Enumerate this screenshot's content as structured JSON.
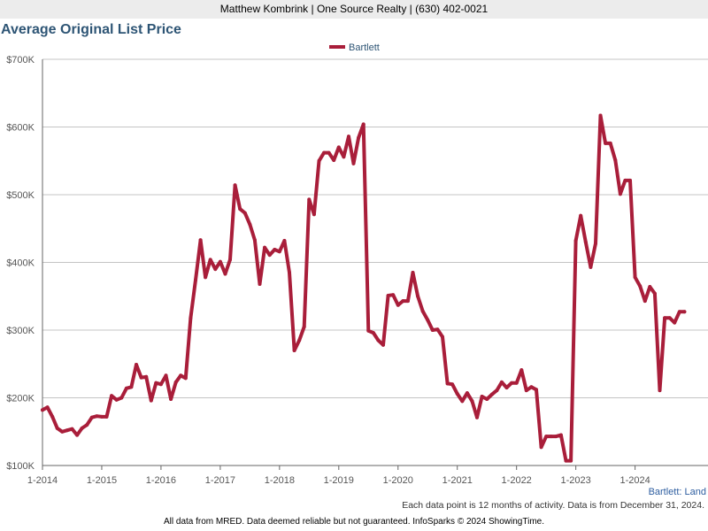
{
  "header": {
    "contact": "Matthew Kombrink | One Source Realty | (630) 402-0021"
  },
  "colors": {
    "series": "#a91e3a",
    "title": "#2e5575",
    "grid": "#c4c4c4",
    "axis": "#666666",
    "header_bg": "#ececec",
    "label": "#2e5ea0"
  },
  "chart_data": {
    "type": "line",
    "title": "Average Original List Price",
    "legend": [
      "Bartlett"
    ],
    "legend_position": "top-center",
    "corner_label": "Bartlett: Land",
    "ylim": [
      100000,
      700000
    ],
    "yticks": [
      100000,
      200000,
      300000,
      400000,
      500000,
      600000,
      700000
    ],
    "ytick_labels": [
      "$100K",
      "$200K",
      "$300K",
      "$400K",
      "$500K",
      "$600K",
      "$700K"
    ],
    "x_start": "1-2014",
    "x_tick_labels": [
      "1-2014",
      "1-2015",
      "1-2016",
      "1-2017",
      "1-2018",
      "1-2019",
      "1-2020",
      "1-2021",
      "1-2022",
      "1-2023",
      "1-2024"
    ],
    "series": [
      {
        "name": "Bartlett",
        "values": [
          182000,
          186000,
          172000,
          155000,
          150000,
          152000,
          154000,
          145000,
          155000,
          160000,
          171000,
          173000,
          172000,
          172000,
          203000,
          197000,
          200000,
          214000,
          216000,
          249000,
          230000,
          231000,
          196000,
          222000,
          220000,
          233000,
          198000,
          223000,
          233000,
          229000,
          318000,
          374000,
          433000,
          378000,
          404000,
          390000,
          401000,
          383000,
          404000,
          514000,
          479000,
          473000,
          456000,
          433000,
          368000,
          422000,
          411000,
          419000,
          416000,
          432000,
          385000,
          270000,
          285000,
          305000,
          493000,
          471000,
          550000,
          562000,
          562000,
          551000,
          570000,
          556000,
          586000,
          546000,
          584000,
          604000,
          299000,
          296000,
          285000,
          278000,
          351000,
          352000,
          337000,
          343000,
          343000,
          385000,
          350000,
          328000,
          315000,
          300000,
          301000,
          290000,
          221000,
          220000,
          206000,
          195000,
          207000,
          195000,
          171000,
          202000,
          198000,
          205000,
          211000,
          223000,
          215000,
          222000,
          222000,
          241000,
          211000,
          216000,
          212000,
          127000,
          143000,
          143000,
          143000,
          145000,
          107000,
          107000,
          432000,
          469000,
          430000,
          393000,
          428000,
          617000,
          576000,
          576000,
          551000,
          501000,
          521000,
          521000,
          378000,
          365000,
          343000,
          364000,
          354000,
          211000,
          318000,
          318000,
          311000,
          327000,
          327000
        ]
      }
    ]
  },
  "notes": {
    "activity": "Each data point is 12 months of activity. Data is from December 31, 2024.",
    "disclaimer": "All data from MRED. Data deemed reliable but not guaranteed. InfoSparks © 2024 ShowingTime."
  }
}
